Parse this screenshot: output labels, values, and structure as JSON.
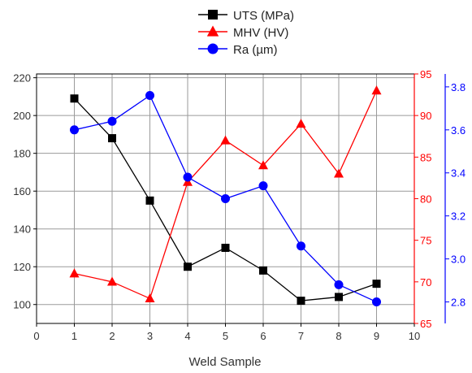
{
  "chart_data": {
    "type": "line",
    "xlabel": "Weld Sample",
    "x": [
      1,
      2,
      3,
      4,
      5,
      6,
      7,
      8,
      9
    ],
    "xlim": [
      0,
      10
    ],
    "x_ticks": [
      "0",
      "1",
      "2",
      "3",
      "4",
      "5",
      "6",
      "7",
      "8",
      "9",
      "10"
    ],
    "grid": true,
    "legend_position": "top-center",
    "series": [
      {
        "name": "UTS (MPa)",
        "axis": "left",
        "color": "#000000",
        "marker": "square",
        "values": [
          209,
          188,
          155,
          120,
          130,
          118,
          102,
          104,
          111
        ]
      },
      {
        "name": "MHV (HV)",
        "axis": "right-1",
        "color": "#ff0000",
        "marker": "triangle",
        "values": [
          71,
          70,
          68,
          82,
          87,
          84,
          89,
          83,
          93
        ]
      },
      {
        "name": "Ra (µm)",
        "axis": "right-2",
        "color": "#0000ff",
        "marker": "circle",
        "values": [
          3.6,
          3.64,
          3.76,
          3.38,
          3.28,
          3.34,
          3.06,
          2.88,
          2.8
        ]
      }
    ],
    "axes": {
      "left": {
        "ylim": [
          90,
          222
        ],
        "ticks": [
          100,
          120,
          140,
          160,
          180,
          200,
          220
        ],
        "tick_labels": [
          "100",
          "120",
          "140",
          "160",
          "180",
          "200",
          "220"
        ],
        "color": "#000000"
      },
      "right-1": {
        "ylim": [
          65,
          95
        ],
        "ticks": [
          65,
          70,
          75,
          80,
          85,
          90,
          95
        ],
        "tick_labels": [
          "65",
          "70",
          "75",
          "80",
          "85",
          "90",
          "95"
        ],
        "color": "#ff0000"
      },
      "right-2": {
        "ylim": [
          2.7,
          3.86
        ],
        "ticks": [
          2.8,
          3.0,
          3.2,
          3.4,
          3.6,
          3.8
        ],
        "tick_labels": [
          "2.8",
          "3.0",
          "3.2",
          "3.4",
          "3.6",
          "3.8"
        ],
        "color": "#0000ff"
      }
    }
  }
}
